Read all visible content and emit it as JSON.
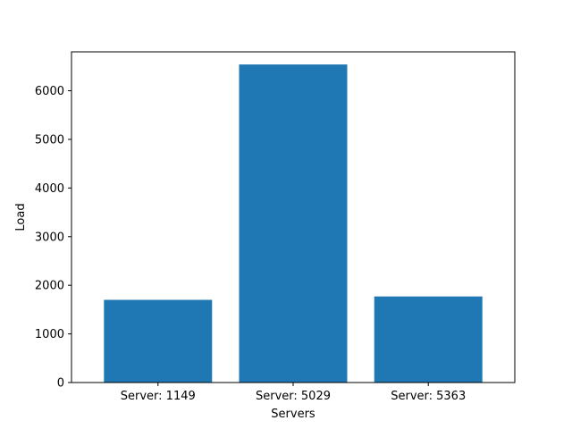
{
  "chart_data": {
    "type": "bar",
    "categories": [
      "Server: 1149",
      "Server: 5029",
      "Server: 5363"
    ],
    "values": [
      1700,
      6540,
      1770
    ],
    "title": "",
    "xlabel": "Servers",
    "ylabel": "Load",
    "ylim": [
      0,
      6800
    ],
    "yticks": [
      0,
      1000,
      2000,
      3000,
      4000,
      5000,
      6000
    ],
    "bar_color": "#1f77b4",
    "grid": false,
    "legend": "none"
  }
}
